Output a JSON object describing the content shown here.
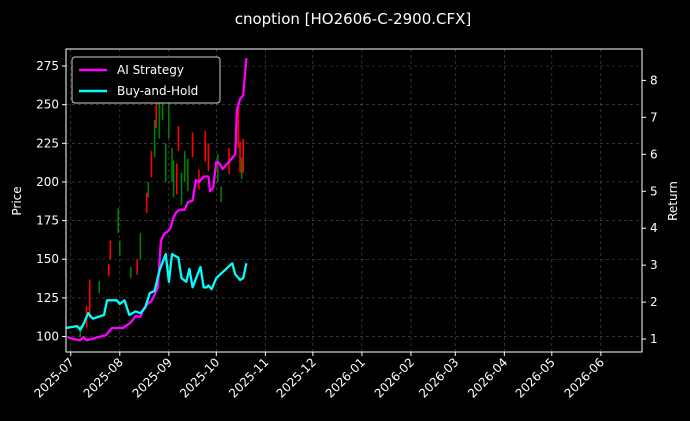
{
  "chart_data": {
    "type": "line",
    "title": "cnoption [HO2606-C-2900.CFX]",
    "ylabel_left": "Price",
    "ylabel_right": "Return",
    "grid": true,
    "legend_position": "top-left",
    "xlim": [
      "2025-06-28",
      "2026-06-27"
    ],
    "ylim_left": [
      90,
      286
    ],
    "ylim_right": [
      0.65,
      8.85
    ],
    "x_ticks": [
      "2025-07-01",
      "2025-08-01",
      "2025-09-01",
      "2025-10-01",
      "2025-11-01",
      "2025-12-01",
      "2026-01-01",
      "2026-02-01",
      "2026-03-01",
      "2026-04-01",
      "2026-05-01",
      "2026-06-01"
    ],
    "x_tick_labels": [
      "2025-07",
      "2025-08",
      "2025-09",
      "2025-10",
      "2025-11",
      "2025-12",
      "2026-01",
      "2026-02",
      "2026-03",
      "2026-04",
      "2026-05",
      "2026-06"
    ],
    "y_ticks_left": [
      100,
      125,
      150,
      175,
      200,
      225,
      250,
      275
    ],
    "y_ticks_right": [
      1,
      2,
      3,
      4,
      5,
      6,
      7,
      8
    ],
    "series": [
      {
        "name": "AI Strategy",
        "axis": "right",
        "color": "#ff00ff",
        "points": [
          [
            "2025-06-29",
            1.05
          ],
          [
            "2025-07-03",
            1.0
          ],
          [
            "2025-07-07",
            0.97
          ],
          [
            "2025-07-09",
            1.05
          ],
          [
            "2025-07-11",
            0.97
          ],
          [
            "2025-07-14",
            1.0
          ],
          [
            "2025-07-18",
            1.05
          ],
          [
            "2025-07-23",
            1.1
          ],
          [
            "2025-07-27",
            1.3
          ],
          [
            "2025-08-03",
            1.3
          ],
          [
            "2025-08-08",
            1.45
          ],
          [
            "2025-08-11",
            1.62
          ],
          [
            "2025-08-14",
            1.6
          ],
          [
            "2025-08-16",
            1.82
          ],
          [
            "2025-08-19",
            1.97
          ],
          [
            "2025-08-21",
            2.03
          ],
          [
            "2025-08-23",
            2.2
          ],
          [
            "2025-08-25",
            2.4
          ],
          [
            "2025-08-27",
            3.65
          ],
          [
            "2025-08-29",
            3.85
          ],
          [
            "2025-08-31",
            3.9
          ],
          [
            "2025-09-02",
            4.0
          ],
          [
            "2025-09-04",
            4.3
          ],
          [
            "2025-09-06",
            4.45
          ],
          [
            "2025-09-08",
            4.5
          ],
          [
            "2025-09-11",
            4.5
          ],
          [
            "2025-09-13",
            4.7
          ],
          [
            "2025-09-16",
            4.75
          ],
          [
            "2025-09-18",
            5.3
          ],
          [
            "2025-09-20",
            5.25
          ],
          [
            "2025-09-23",
            5.4
          ],
          [
            "2025-09-26",
            5.4
          ],
          [
            "2025-09-27",
            5.0
          ],
          [
            "2025-09-29",
            5.1
          ],
          [
            "2025-10-01",
            5.8
          ],
          [
            "2025-10-03",
            5.75
          ],
          [
            "2025-10-05",
            5.6
          ],
          [
            "2025-10-07",
            5.7
          ],
          [
            "2025-10-10",
            5.85
          ],
          [
            "2025-10-13",
            6.0
          ],
          [
            "2025-10-14",
            7.2
          ],
          [
            "2025-10-16",
            7.5
          ],
          [
            "2025-10-18",
            7.6
          ],
          [
            "2025-10-20",
            8.6
          ]
        ]
      },
      {
        "name": "Buy-and-Hold",
        "axis": "right",
        "color": "#00ffff",
        "points": [
          [
            "2025-06-28",
            1.3
          ],
          [
            "2025-07-05",
            1.35
          ],
          [
            "2025-07-07",
            1.25
          ],
          [
            "2025-07-09",
            1.4
          ],
          [
            "2025-07-12",
            1.7
          ],
          [
            "2025-07-15",
            1.55
          ],
          [
            "2025-07-22",
            1.65
          ],
          [
            "2025-07-24",
            2.05
          ],
          [
            "2025-07-30",
            2.05
          ],
          [
            "2025-08-01",
            1.95
          ],
          [
            "2025-08-04",
            2.05
          ],
          [
            "2025-08-07",
            1.65
          ],
          [
            "2025-08-11",
            1.75
          ],
          [
            "2025-08-14",
            1.7
          ],
          [
            "2025-08-17",
            1.85
          ],
          [
            "2025-08-20",
            2.25
          ],
          [
            "2025-08-23",
            2.3
          ],
          [
            "2025-08-26",
            2.85
          ],
          [
            "2025-08-30",
            3.3
          ],
          [
            "2025-09-01",
            2.55
          ],
          [
            "2025-09-03",
            3.3
          ],
          [
            "2025-09-07",
            3.2
          ],
          [
            "2025-09-09",
            2.65
          ],
          [
            "2025-09-12",
            2.55
          ],
          [
            "2025-09-14",
            2.9
          ],
          [
            "2025-09-16",
            2.4
          ],
          [
            "2025-09-21",
            2.95
          ],
          [
            "2025-09-23",
            2.4
          ],
          [
            "2025-09-25",
            2.4
          ],
          [
            "2025-09-26",
            2.45
          ],
          [
            "2025-09-28",
            2.35
          ],
          [
            "2025-10-01",
            2.65
          ],
          [
            "2025-10-06",
            2.85
          ],
          [
            "2025-10-11",
            3.05
          ],
          [
            "2025-10-13",
            2.75
          ],
          [
            "2025-10-16",
            2.6
          ],
          [
            "2025-10-18",
            2.65
          ],
          [
            "2025-10-20",
            3.05
          ]
        ]
      }
    ],
    "candles": {
      "axis": "left",
      "up_color": "#008000",
      "down_color": "#ff0000",
      "items": [
        {
          "date": "2025-07-07",
          "low": 100,
          "high": 107,
          "dir": "up"
        },
        {
          "date": "2025-07-11",
          "low": 106,
          "high": 120,
          "dir": "down"
        },
        {
          "date": "2025-07-13",
          "low": 112,
          "high": 137,
          "dir": "down"
        },
        {
          "date": "2025-07-19",
          "low": 128,
          "high": 136,
          "dir": "up"
        },
        {
          "date": "2025-07-25",
          "low": 139,
          "high": 147,
          "dir": "down"
        },
        {
          "date": "2025-07-26",
          "low": 150,
          "high": 162,
          "dir": "down"
        },
        {
          "date": "2025-08-01",
          "low": 152,
          "high": 162,
          "dir": "up"
        },
        {
          "date": "2025-07-31",
          "low": 167,
          "high": 183,
          "dir": "up"
        },
        {
          "date": "2025-08-08",
          "low": 138,
          "high": 145,
          "dir": "up"
        },
        {
          "date": "2025-08-12",
          "low": 140,
          "high": 150,
          "dir": "down"
        },
        {
          "date": "2025-08-14",
          "low": 150,
          "high": 167,
          "dir": "up"
        },
        {
          "date": "2025-08-18",
          "low": 180,
          "high": 193,
          "dir": "down"
        },
        {
          "date": "2025-08-19",
          "low": 190,
          "high": 200,
          "dir": "up"
        },
        {
          "date": "2025-08-21",
          "low": 203,
          "high": 220,
          "dir": "down"
        },
        {
          "date": "2025-08-23",
          "low": 216,
          "high": 240,
          "dir": "up"
        },
        {
          "date": "2025-08-24",
          "low": 235,
          "high": 255,
          "dir": "down"
        },
        {
          "date": "2025-08-26",
          "low": 228,
          "high": 255,
          "dir": "up"
        },
        {
          "date": "2025-08-28",
          "low": 240,
          "high": 258,
          "dir": "up"
        },
        {
          "date": "2025-08-30",
          "low": 200,
          "high": 225,
          "dir": "up"
        },
        {
          "date": "2025-09-01",
          "low": 228,
          "high": 265,
          "dir": "up"
        },
        {
          "date": "2025-09-03",
          "low": 200,
          "high": 222,
          "dir": "up"
        },
        {
          "date": "2025-09-04",
          "low": 190,
          "high": 214,
          "dir": "up"
        },
        {
          "date": "2025-09-06",
          "low": 192,
          "high": 212,
          "dir": "down"
        },
        {
          "date": "2025-09-07",
          "low": 220,
          "high": 236,
          "dir": "down"
        },
        {
          "date": "2025-09-09",
          "low": 185,
          "high": 206,
          "dir": "up"
        },
        {
          "date": "2025-09-11",
          "low": 200,
          "high": 220,
          "dir": "up"
        },
        {
          "date": "2025-09-13",
          "low": 194,
          "high": 215,
          "dir": "up"
        },
        {
          "date": "2025-09-16",
          "low": 216,
          "high": 232,
          "dir": "down"
        },
        {
          "date": "2025-09-20",
          "low": 195,
          "high": 208,
          "dir": "down"
        },
        {
          "date": "2025-09-24",
          "low": 213,
          "high": 233,
          "dir": "down"
        },
        {
          "date": "2025-09-26",
          "low": 207,
          "high": 225,
          "dir": "down"
        },
        {
          "date": "2025-10-02",
          "low": 200,
          "high": 218,
          "dir": "up"
        },
        {
          "date": "2025-10-04",
          "low": 187,
          "high": 197,
          "dir": "up"
        },
        {
          "date": "2025-10-09",
          "low": 205,
          "high": 222,
          "dir": "down"
        },
        {
          "date": "2025-10-15",
          "low": 222,
          "high": 252,
          "dir": "down"
        },
        {
          "date": "2025-10-16",
          "low": 206,
          "high": 226,
          "dir": "down"
        },
        {
          "date": "2025-10-17",
          "low": 202,
          "high": 216,
          "dir": "up"
        },
        {
          "date": "2025-10-18",
          "low": 206,
          "high": 228,
          "dir": "down"
        }
      ]
    }
  },
  "colors": {
    "background": "#000000",
    "grid": "#555555",
    "frame": "#ffffff",
    "legend_border": "#cccccc"
  }
}
